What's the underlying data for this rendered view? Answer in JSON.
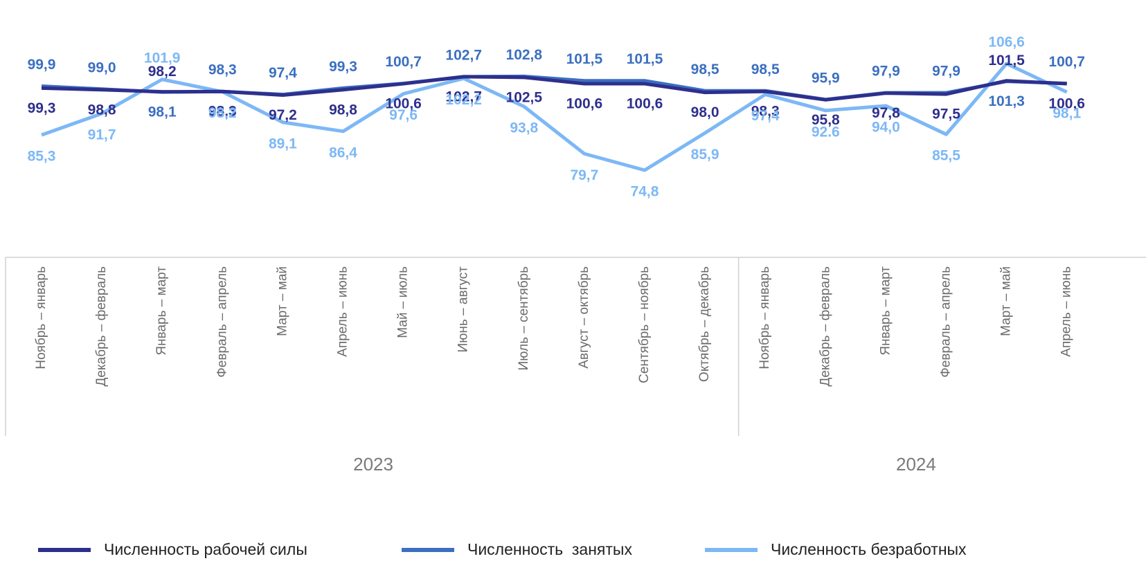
{
  "chart_data": {
    "type": "line",
    "categories": [
      "Ноябрь – январь",
      "Декабрь – февраль",
      "Январь – март",
      "Февраль – апрель",
      "Март – май",
      "Апрель – июнь",
      "Май – июль",
      "Июнь – август",
      "Июль – сентябрь",
      "Август – октябрь",
      "Сентябрь – ноябрь",
      "Октябрь – декабрь",
      "Ноябрь – январь",
      "Декабрь – февраль",
      "Январь – март",
      "Февраль – апрель",
      "Март – май",
      "Апрель – июнь"
    ],
    "year_groups": [
      {
        "label": "2023",
        "span": 12
      },
      {
        "label": "2024",
        "span": 6
      }
    ],
    "series": [
      {
        "name": "Численность рабочей силы",
        "color": "#2e2f8c",
        "values": [
          99.3,
          98.8,
          98.2,
          98.3,
          97.2,
          98.8,
          100.6,
          102.7,
          102.5,
          100.6,
          100.6,
          98.0,
          98.3,
          95.8,
          97.8,
          97.5,
          101.5,
          100.6
        ],
        "value_labels": [
          "99,3",
          "98,8",
          "98,2",
          "98,3",
          "97,2",
          "98,8",
          "100,6",
          "102,7",
          "102,5",
          "100,6",
          "100,6",
          "98,0",
          "98,3",
          "95,8",
          "97,8",
          "97,5",
          "101,5",
          "100,6"
        ]
      },
      {
        "name": "Численность  занятых",
        "color": "#3b6fc1",
        "values": [
          99.9,
          99.0,
          98.1,
          98.3,
          97.4,
          99.3,
          100.7,
          102.7,
          102.8,
          101.5,
          101.5,
          98.5,
          98.5,
          95.9,
          97.9,
          97.9,
          101.3,
          100.7
        ],
        "value_labels": [
          "99,9",
          "99,0",
          "98,1",
          "98,3",
          "97,4",
          "99,3",
          "100,7",
          "102,7",
          "102,8",
          "101,5",
          "101,5",
          "98,5",
          "98,5",
          "95,9",
          "97,9",
          "97,9",
          "101,3",
          "100,7"
        ]
      },
      {
        "name": "Численность безработных",
        "color": "#7db8f5",
        "values": [
          85.3,
          91.7,
          101.9,
          98.2,
          89.1,
          86.4,
          97.6,
          102.2,
          93.8,
          79.7,
          74.8,
          85.9,
          97.4,
          92.6,
          94.0,
          85.5,
          106.6,
          98.1
        ],
        "value_labels": [
          "85,3",
          "91,7",
          "101,9",
          "98,2",
          "89,1",
          "86,4",
          "97,6",
          "102,2",
          "93,8",
          "79,7",
          "74,8",
          "85,9",
          "97,4",
          "92.6",
          "94,0",
          "85,5",
          "106,6",
          "98,1"
        ]
      }
    ]
  }
}
